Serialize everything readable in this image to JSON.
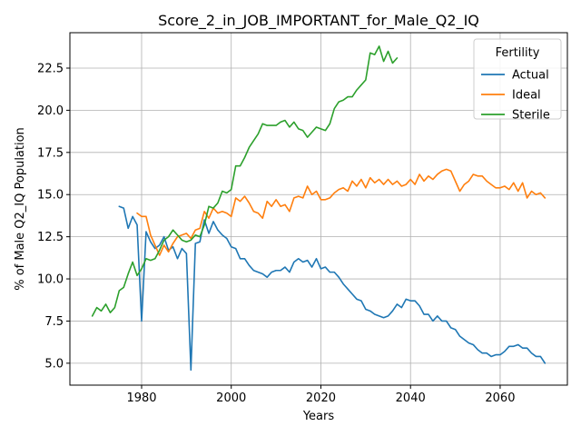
{
  "chart_data": {
    "type": "line",
    "title": "Score_2_in_JOB_IMPORTANT_for_Male_Q2_IQ",
    "xlabel": "Years",
    "ylabel": "% of Male Q2_IQ Population",
    "xlim": [
      1964,
      2075
    ],
    "ylim": [
      3.7,
      24.6
    ],
    "xticks": [
      1980,
      2000,
      2020,
      2040,
      2060
    ],
    "yticks": [
      5.0,
      7.5,
      10.0,
      12.5,
      15.0,
      17.5,
      20.0,
      22.5
    ],
    "xtick_labels": [
      "1980",
      "2000",
      "2020",
      "2040",
      "2060"
    ],
    "ytick_labels": [
      "5.0",
      "7.5",
      "10.0",
      "12.5",
      "15.0",
      "17.5",
      "20.0",
      "22.5"
    ],
    "grid": true,
    "legend": {
      "title": "Fertility",
      "position": "top-right"
    },
    "series": [
      {
        "name": "Actual",
        "color": "#1f77b4",
        "x": [
          1975,
          1976,
          1977,
          1978,
          1979,
          1980,
          1981,
          1982,
          1983,
          1984,
          1985,
          1986,
          1987,
          1988,
          1989,
          1990,
          1991,
          1992,
          1993,
          1994,
          1995,
          1996,
          1997,
          1998,
          1999,
          2000,
          2001,
          2002,
          2003,
          2004,
          2005,
          2006,
          2007,
          2008,
          2009,
          2010,
          2011,
          2012,
          2013,
          2014,
          2015,
          2016,
          2017,
          2018,
          2019,
          2020,
          2021,
          2022,
          2023,
          2024,
          2025,
          2026,
          2027,
          2028,
          2029,
          2030,
          2031,
          2032,
          2033,
          2034,
          2035,
          2036,
          2037,
          2038,
          2039,
          2040,
          2041,
          2042,
          2043,
          2044,
          2045,
          2046,
          2047,
          2048,
          2049,
          2050,
          2051,
          2052,
          2053,
          2054,
          2055,
          2056,
          2057,
          2058,
          2059,
          2060,
          2061,
          2062,
          2063,
          2064,
          2065,
          2066,
          2067,
          2068,
          2069,
          2070
        ],
        "y": [
          14.3,
          14.2,
          13.0,
          13.7,
          13.2,
          7.5,
          12.8,
          12.2,
          11.8,
          12.0,
          12.5,
          11.7,
          11.9,
          11.2,
          11.8,
          11.5,
          4.6,
          12.1,
          12.2,
          13.5,
          12.7,
          13.4,
          12.9,
          12.6,
          12.4,
          11.9,
          11.8,
          11.2,
          11.2,
          10.8,
          10.5,
          10.4,
          10.3,
          10.1,
          10.4,
          10.5,
          10.5,
          10.7,
          10.4,
          11.0,
          11.2,
          11.0,
          11.1,
          10.7,
          11.2,
          10.6,
          10.7,
          10.4,
          10.4,
          10.1,
          9.7,
          9.4,
          9.1,
          8.8,
          8.7,
          8.2,
          8.1,
          7.9,
          7.8,
          7.7,
          7.8,
          8.1,
          8.5,
          8.3,
          8.8,
          8.7,
          8.7,
          8.4,
          7.9,
          7.9,
          7.5,
          7.8,
          7.5,
          7.5,
          7.1,
          7.0,
          6.6,
          6.4,
          6.2,
          6.1,
          5.8,
          5.6,
          5.6,
          5.4,
          5.5,
          5.5,
          5.7,
          6.0,
          6.0,
          6.1,
          5.9,
          5.9,
          5.6,
          5.4,
          5.4,
          5.0
        ]
      },
      {
        "name": "Ideal",
        "color": "#ff7f0e",
        "x": [
          1979,
          1980,
          1981,
          1982,
          1983,
          1984,
          1985,
          1986,
          1987,
          1988,
          1989,
          1990,
          1991,
          1992,
          1993,
          1994,
          1995,
          1996,
          1997,
          1998,
          1999,
          2000,
          2001,
          2002,
          2003,
          2004,
          2005,
          2006,
          2007,
          2008,
          2009,
          2010,
          2011,
          2012,
          2013,
          2014,
          2015,
          2016,
          2017,
          2018,
          2019,
          2020,
          2021,
          2022,
          2023,
          2024,
          2025,
          2026,
          2027,
          2028,
          2029,
          2030,
          2031,
          2032,
          2033,
          2034,
          2035,
          2036,
          2037,
          2038,
          2039,
          2040,
          2041,
          2042,
          2043,
          2044,
          2045,
          2046,
          2047,
          2048,
          2049,
          2050,
          2051,
          2052,
          2053,
          2054,
          2055,
          2056,
          2057,
          2058,
          2059,
          2060,
          2061,
          2062,
          2063,
          2064,
          2065,
          2066,
          2067,
          2068,
          2069,
          2070
        ],
        "y": [
          13.9,
          13.7,
          13.7,
          12.6,
          12.0,
          11.4,
          12.0,
          11.6,
          12.1,
          12.5,
          12.6,
          12.7,
          12.4,
          12.9,
          13.0,
          14.0,
          13.6,
          14.2,
          13.9,
          14.0,
          13.9,
          13.7,
          14.8,
          14.6,
          14.9,
          14.5,
          14.0,
          13.9,
          13.6,
          14.6,
          14.3,
          14.7,
          14.3,
          14.4,
          14.0,
          14.8,
          14.9,
          14.8,
          15.5,
          15.0,
          15.2,
          14.7,
          14.7,
          14.8,
          15.1,
          15.3,
          15.4,
          15.2,
          15.8,
          15.5,
          15.9,
          15.4,
          16.0,
          15.7,
          15.9,
          15.6,
          15.9,
          15.6,
          15.8,
          15.5,
          15.6,
          15.9,
          15.6,
          16.2,
          15.8,
          16.1,
          15.9,
          16.2,
          16.4,
          16.5,
          16.4,
          15.8,
          15.2,
          15.6,
          15.8,
          16.2,
          16.1,
          16.1,
          15.8,
          15.6,
          15.4,
          15.4,
          15.5,
          15.3,
          15.7,
          15.2,
          15.7,
          14.8,
          15.2,
          15.0,
          15.1,
          14.8
        ]
      },
      {
        "name": "Sterile",
        "color": "#2ca02c",
        "x": [
          1969,
          1970,
          1971,
          1972,
          1973,
          1974,
          1975,
          1976,
          1977,
          1978,
          1979,
          1980,
          1981,
          1982,
          1983,
          1984,
          1985,
          1986,
          1987,
          1988,
          1989,
          1990,
          1991,
          1992,
          1993,
          1994,
          1995,
          1996,
          1997,
          1998,
          1999,
          2000,
          2001,
          2002,
          2003,
          2004,
          2005,
          2006,
          2007,
          2008,
          2009,
          2010,
          2011,
          2012,
          2013,
          2014,
          2015,
          2016,
          2017,
          2018,
          2019,
          2020,
          2021,
          2022,
          2023,
          2024,
          2025,
          2026,
          2027,
          2028,
          2029,
          2030,
          2031,
          2032,
          2033,
          2034,
          2035,
          2036,
          2037
        ],
        "y": [
          7.8,
          8.3,
          8.1,
          8.5,
          8.0,
          8.3,
          9.3,
          9.5,
          10.3,
          11.0,
          10.2,
          10.6,
          11.2,
          11.1,
          11.2,
          11.7,
          12.3,
          12.5,
          12.9,
          12.6,
          12.3,
          12.2,
          12.3,
          12.6,
          12.5,
          13.2,
          14.3,
          14.2,
          14.5,
          15.2,
          15.1,
          15.3,
          16.7,
          16.7,
          17.2,
          17.8,
          18.2,
          18.6,
          19.2,
          19.1,
          19.1,
          19.1,
          19.3,
          19.4,
          19.0,
          19.3,
          18.9,
          18.8,
          18.4,
          18.7,
          19.0,
          18.9,
          18.8,
          19.2,
          20.1,
          20.5,
          20.6,
          20.8,
          20.8,
          21.2,
          21.5,
          21.8,
          23.4,
          23.3,
          23.8,
          22.9,
          23.5,
          22.8,
          23.1
        ]
      }
    ]
  }
}
